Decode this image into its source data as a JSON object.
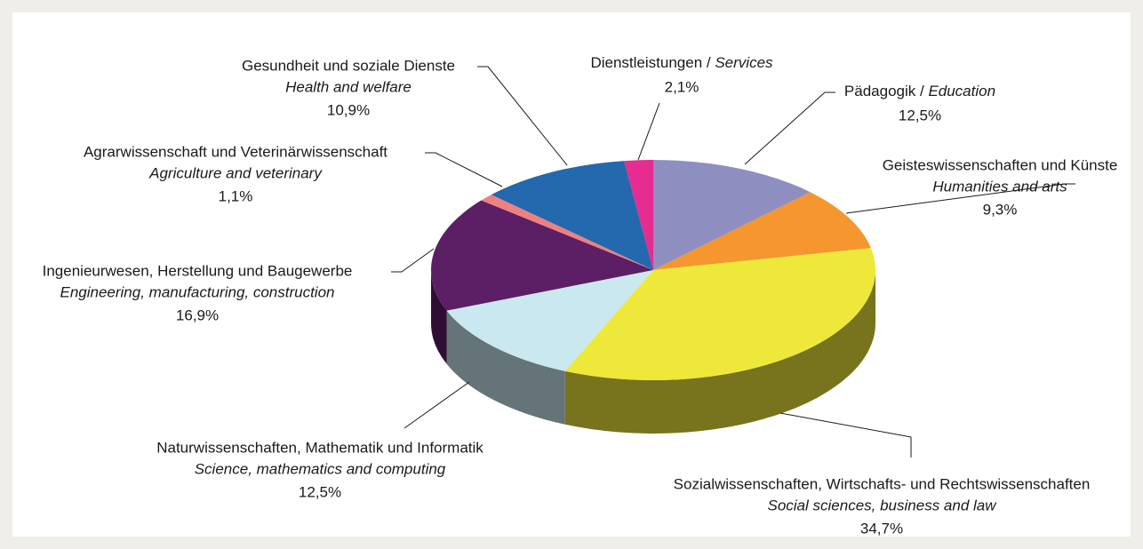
{
  "chart_data": {
    "type": "pie",
    "labels": [
      {
        "de": "Pädagogik / ",
        "en": "Education",
        "inline": true
      },
      {
        "de": "Geisteswissenschaften und Künste",
        "en": "Humanities and arts",
        "inline": false
      },
      {
        "de": "Sozialwissenschaften, Wirtschafts- und Rechtswissenschaften",
        "en": "Social sciences, business and law",
        "inline": false
      },
      {
        "de": "Naturwissenschaften, Mathematik und Informatik",
        "en": "Science, mathematics and computing",
        "inline": false
      },
      {
        "de": "Ingenieurwesen, Herstellung und Baugewerbe",
        "en": "Engineering, manufacturing, construction",
        "inline": false
      },
      {
        "de": "Agrarwissenschaft und Veterinärwissenschaft",
        "en": "Agriculture and veterinary",
        "inline": false
      },
      {
        "de": "Gesundheit und soziale Dienste",
        "en": "Health and welfare",
        "inline": false
      },
      {
        "de": "Dienstleistungen / ",
        "en": "Services",
        "inline": true
      }
    ],
    "values": [
      12.5,
      9.3,
      34.7,
      12.5,
      16.9,
      1.1,
      10.9,
      2.1
    ],
    "value_labels": [
      "12,5%",
      "9,3%",
      "34,7%",
      "12,5%",
      "16,9%",
      "1,1%",
      "10,9%",
      "2,1%"
    ],
    "colors": [
      "#8e8fc0",
      "#f5962f",
      "#eee83a",
      "#c9e8ef",
      "#5c1e65",
      "#ef8080",
      "#2468ae",
      "#e42c91"
    ],
    "three_d": true
  }
}
